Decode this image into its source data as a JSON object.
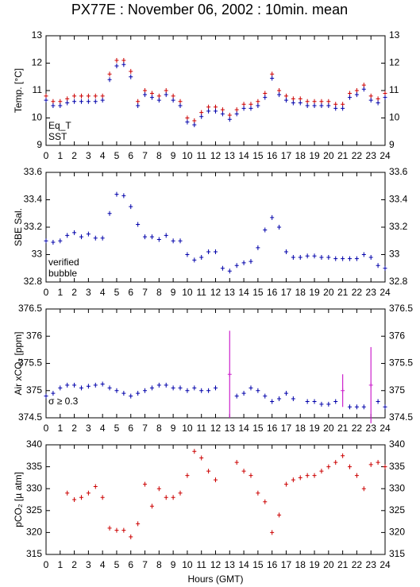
{
  "chart_data": [
    {
      "type": "scatter",
      "title": "PX77E : November 06, 2002 : 10min. mean",
      "ylabel": "Temp. [°C]",
      "x": [
        0,
        0.5,
        1,
        1.5,
        2,
        2.5,
        3,
        3.5,
        4,
        4.5,
        5,
        5.5,
        6,
        6.5,
        7,
        7.5,
        8,
        8.5,
        9,
        9.5,
        10,
        10.5,
        11,
        11.5,
        12,
        12.5,
        13,
        13.5,
        14,
        14.5,
        15,
        15.5,
        16,
        16.5,
        17,
        17.5,
        18,
        18.5,
        19,
        19.5,
        20,
        20.5,
        21,
        21.5,
        22,
        22.5,
        23,
        23.5,
        24
      ],
      "series": [
        {
          "name": "Eq_T",
          "color": "#cc0000",
          "values": [
            10.8,
            10.6,
            10.6,
            10.7,
            10.8,
            10.8,
            10.8,
            10.8,
            10.8,
            11.6,
            12.1,
            12.1,
            11.7,
            10.6,
            11.0,
            10.9,
            10.8,
            11.0,
            10.8,
            10.6,
            10.0,
            9.9,
            10.2,
            10.4,
            10.4,
            10.3,
            10.1,
            10.3,
            10.5,
            10.5,
            10.6,
            10.9,
            11.6,
            11.0,
            10.8,
            10.7,
            10.7,
            10.6,
            10.6,
            10.6,
            10.6,
            10.5,
            10.5,
            10.9,
            11.0,
            11.2,
            10.8,
            10.7,
            10.9
          ]
        },
        {
          "name": "SST",
          "color": "#0000aa",
          "values": [
            10.65,
            10.45,
            10.45,
            10.55,
            10.6,
            10.6,
            10.6,
            10.6,
            10.65,
            11.4,
            11.9,
            11.95,
            11.5,
            10.45,
            10.85,
            10.75,
            10.65,
            10.85,
            10.65,
            10.45,
            9.85,
            9.75,
            10.05,
            10.25,
            10.25,
            10.15,
            9.95,
            10.15,
            10.35,
            10.35,
            10.45,
            10.75,
            11.45,
            10.85,
            10.65,
            10.55,
            10.55,
            10.45,
            10.45,
            10.45,
            10.45,
            10.35,
            10.35,
            10.75,
            10.85,
            11.05,
            10.65,
            10.55,
            10.75
          ]
        }
      ],
      "xlim": [
        0,
        24
      ],
      "xticks": [
        0,
        1,
        2,
        3,
        4,
        5,
        6,
        7,
        8,
        9,
        10,
        11,
        12,
        13,
        14,
        15,
        16,
        17,
        18,
        19,
        20,
        21,
        22,
        23,
        24
      ],
      "ylim": [
        9,
        13
      ],
      "yticks": [
        9,
        10,
        11,
        12,
        13
      ]
    },
    {
      "type": "scatter",
      "ylabel": "SBE Sal.",
      "x": [
        0,
        0.5,
        1,
        1.5,
        2,
        2.5,
        3,
        3.5,
        4,
        4.5,
        5,
        5.5,
        6,
        6.5,
        7,
        7.5,
        8,
        8.5,
        9,
        9.5,
        10,
        10.5,
        11,
        11.5,
        12,
        12.5,
        13,
        13.5,
        14,
        14.5,
        15,
        15.5,
        16,
        16.5,
        17,
        17.5,
        18,
        18.5,
        19,
        19.5,
        20,
        20.5,
        21,
        21.5,
        22,
        22.5,
        23,
        23.5,
        24
      ],
      "series": [
        {
          "name": "verified",
          "color": "#0000aa",
          "values": [
            33.1,
            33.09,
            33.1,
            33.14,
            33.16,
            33.13,
            33.15,
            33.12,
            33.12,
            33.3,
            33.44,
            33.43,
            33.35,
            33.22,
            33.13,
            33.13,
            33.11,
            33.14,
            33.1,
            33.1,
            33.0,
            32.96,
            32.98,
            33.02,
            33.02,
            32.9,
            32.88,
            32.92,
            32.94,
            32.95,
            33.05,
            33.18,
            33.27,
            33.2,
            33.02,
            32.98,
            32.98,
            32.99,
            32.99,
            32.98,
            32.98,
            32.97,
            32.97,
            32.97,
            32.97,
            33.0,
            32.98,
            32.92,
            32.9
          ]
        },
        {
          "name": "bubble",
          "color": "#cc22cc",
          "values": [
            null,
            null,
            null,
            null,
            null,
            null,
            null,
            null,
            null,
            null,
            null,
            null,
            null,
            null,
            null,
            null,
            null,
            null,
            null,
            null,
            null,
            null,
            null,
            null,
            null,
            null,
            null,
            null,
            null,
            null,
            null,
            null,
            null,
            null,
            null,
            null,
            null,
            null,
            null,
            null,
            null,
            null,
            null,
            null,
            null,
            null,
            null,
            null,
            null
          ]
        }
      ],
      "xlim": [
        0,
        24
      ],
      "xticks": [
        0,
        1,
        2,
        3,
        4,
        5,
        6,
        7,
        8,
        9,
        10,
        11,
        12,
        13,
        14,
        15,
        16,
        17,
        18,
        19,
        20,
        21,
        22,
        23,
        24
      ],
      "ylim": [
        32.8,
        33.6
      ],
      "yticks": [
        32.8,
        33,
        33.2,
        33.4,
        33.6
      ]
    },
    {
      "type": "scatter",
      "ylabel": "Air xCO₂ [ppm]",
      "x": [
        0,
        0.5,
        1,
        1.5,
        2,
        2.5,
        3,
        3.5,
        4,
        4.5,
        5,
        5.5,
        6,
        6.5,
        7,
        7.5,
        8,
        8.5,
        9,
        9.5,
        10,
        10.5,
        11,
        11.5,
        12,
        12.5,
        13,
        13.5,
        14,
        14.5,
        15,
        15.5,
        16,
        16.5,
        17,
        17.5,
        18,
        18.5,
        19,
        19.5,
        20,
        20.5,
        21,
        21.5,
        22,
        22.5,
        23,
        23.5,
        24
      ],
      "series": [
        {
          "color": "#0000aa",
          "values": [
            374.9,
            374.95,
            375.05,
            375.1,
            375.1,
            375.05,
            375.08,
            375.1,
            375.12,
            375.05,
            375.0,
            374.95,
            374.9,
            374.95,
            375.0,
            375.05,
            375.1,
            375.1,
            375.05,
            375.05,
            375.0,
            375.05,
            375.0,
            375.0,
            375.05,
            null,
            null,
            374.9,
            374.95,
            375.05,
            375.0,
            374.9,
            374.8,
            374.85,
            374.95,
            374.85,
            null,
            374.8,
            374.8,
            374.75,
            374.75,
            374.8,
            null,
            374.7,
            374.7,
            374.7,
            null,
            374.8,
            374.7
          ]
        },
        {
          "name": "σ ≥ 0.3",
          "color": "#cc22cc",
          "values": [
            null,
            null,
            null,
            null,
            null,
            null,
            null,
            null,
            null,
            null,
            null,
            null,
            null,
            null,
            null,
            null,
            null,
            null,
            null,
            null,
            null,
            null,
            null,
            null,
            null,
            null,
            375.3,
            null,
            null,
            null,
            null,
            null,
            null,
            null,
            null,
            null,
            null,
            null,
            null,
            null,
            null,
            null,
            375.0,
            null,
            null,
            null,
            375.1,
            null,
            null
          ],
          "errors": [
            null,
            null,
            null,
            null,
            null,
            null,
            null,
            null,
            null,
            null,
            null,
            null,
            null,
            null,
            null,
            null,
            null,
            null,
            null,
            null,
            null,
            null,
            null,
            null,
            null,
            null,
            0.8,
            null,
            null,
            null,
            null,
            null,
            null,
            null,
            null,
            null,
            null,
            null,
            null,
            null,
            null,
            null,
            0.3,
            null,
            null,
            null,
            0.7,
            null,
            null
          ]
        }
      ],
      "xlim": [
        0,
        24
      ],
      "xticks": [
        0,
        1,
        2,
        3,
        4,
        5,
        6,
        7,
        8,
        9,
        10,
        11,
        12,
        13,
        14,
        15,
        16,
        17,
        18,
        19,
        20,
        21,
        22,
        23,
        24
      ],
      "ylim": [
        374.5,
        376.5
      ],
      "yticks": [
        374.5,
        375,
        375.5,
        376,
        376.5
      ]
    },
    {
      "type": "scatter",
      "ylabel": "pCO₂ [µ atm]",
      "xlabel": "Hours (GMT)",
      "x": [
        0,
        0.5,
        1,
        1.5,
        2,
        2.5,
        3,
        3.5,
        4,
        4.5,
        5,
        5.5,
        6,
        6.5,
        7,
        7.5,
        8,
        8.5,
        9,
        9.5,
        10,
        10.5,
        11,
        11.5,
        12,
        12.5,
        13,
        13.5,
        14,
        14.5,
        15,
        15.5,
        16,
        16.5,
        17,
        17.5,
        18,
        18.5,
        19,
        19.5,
        20,
        20.5,
        21,
        21.5,
        22,
        22.5,
        23,
        23.5,
        24
      ],
      "series": [
        {
          "color": "#cc0000",
          "values": [
            null,
            null,
            null,
            329,
            327.5,
            328,
            329,
            330.5,
            328,
            321,
            320.5,
            320.5,
            319,
            322,
            331,
            326,
            330,
            328,
            328,
            329,
            333,
            338.5,
            337,
            334,
            332,
            null,
            null,
            336,
            334,
            333,
            329,
            327,
            320,
            324,
            331,
            332,
            332.5,
            333,
            333,
            334,
            335,
            336,
            337.5,
            335,
            333,
            330,
            335.5,
            336,
            335
          ]
        }
      ],
      "xlim": [
        0,
        24
      ],
      "xticks": [
        0,
        1,
        2,
        3,
        4,
        5,
        6,
        7,
        8,
        9,
        10,
        11,
        12,
        13,
        14,
        15,
        16,
        17,
        18,
        19,
        20,
        21,
        22,
        23,
        24
      ],
      "ylim": [
        315,
        340
      ],
      "yticks": [
        315,
        320,
        325,
        330,
        335,
        340
      ]
    }
  ]
}
